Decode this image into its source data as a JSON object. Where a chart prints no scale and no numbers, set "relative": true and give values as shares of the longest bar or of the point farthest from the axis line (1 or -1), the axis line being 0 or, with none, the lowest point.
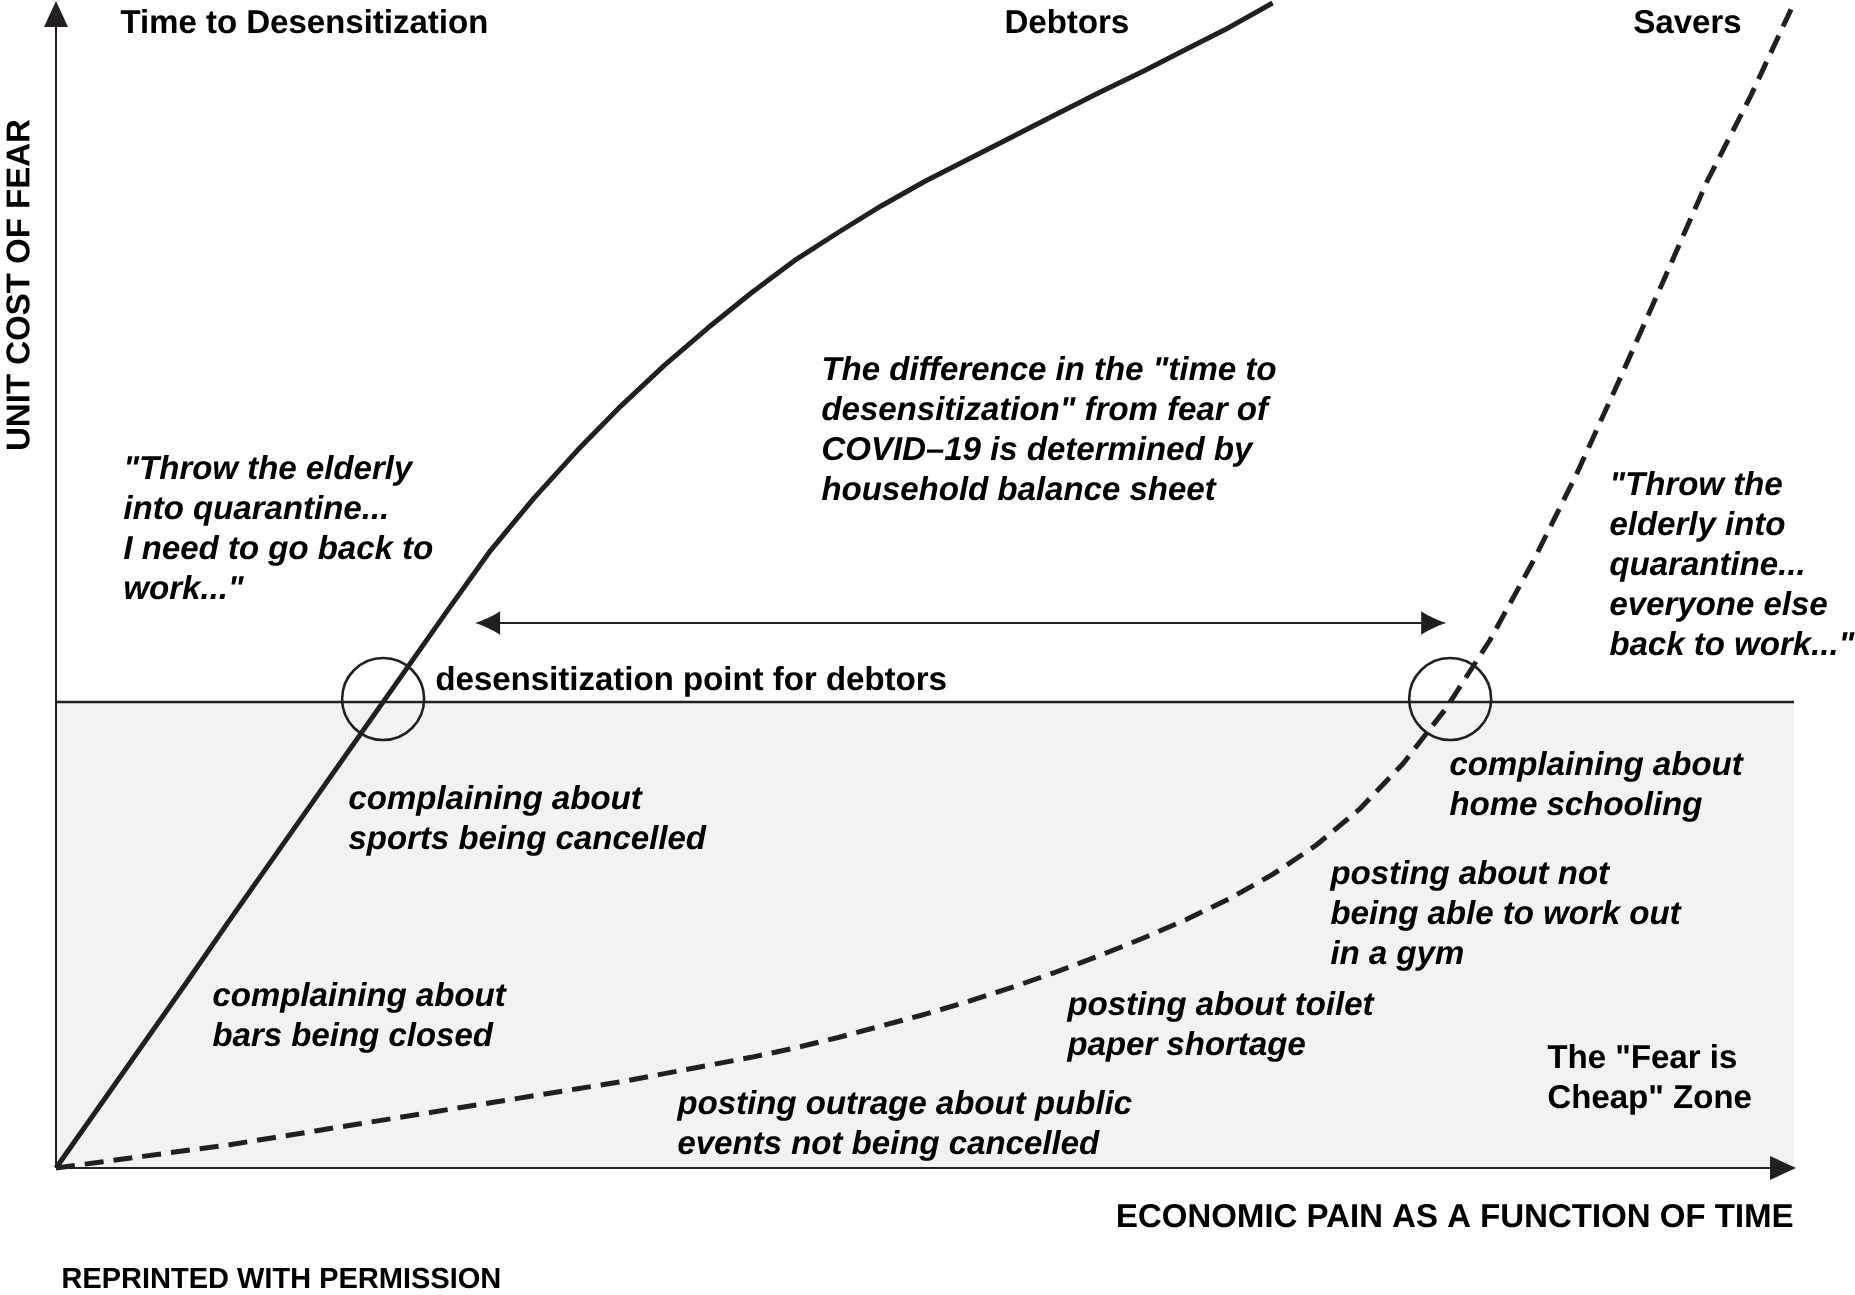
{
  "chart_data": {
    "type": "line",
    "title": "Time to Desensitization",
    "xlabel": "ECONOMIC PAIN AS A FUNCTION OF TIME",
    "ylabel": "UNIT COST OF FEAR",
    "relative": true,
    "categories": [
      null,
      null,
      null,
      null,
      null,
      null,
      null,
      null,
      null,
      null,
      null,
      null,
      null,
      null,
      null,
      null,
      null,
      null,
      null,
      null,
      null,
      null,
      null,
      null,
      null,
      null,
      null,
      null,
      null,
      null,
      null,
      null,
      null,
      null,
      null,
      null,
      null,
      null,
      null,
      null,
      null
    ],
    "series": [
      {
        "name": "Debtors",
        "color": "#231f20",
        "line_style": "solid",
        "values": [
          0,
          0.053,
          0.106,
          0.159,
          0.213,
          0.266,
          0.319,
          0.372,
          0.425,
          0.478,
          0.53,
          0.575,
          0.616,
          0.654,
          0.689,
          0.721,
          0.751,
          0.779,
          0.803,
          0.826,
          0.847,
          0.866,
          0.885,
          0.904,
          0.923,
          0.941,
          0.96,
          0.979,
          1,
          null,
          null,
          null,
          null,
          null,
          null,
          null,
          null,
          null,
          null,
          null,
          null
        ]
      },
      {
        "name": "Savers",
        "color": "#231f20",
        "line_style": "dashed",
        "values": [
          0,
          0.005,
          0.01,
          0.015,
          0.02,
          0.026,
          0.032,
          0.038,
          0.044,
          0.05,
          0.056,
          0.062,
          0.068,
          0.074,
          0.081,
          0.088,
          0.095,
          0.103,
          0.112,
          0.122,
          0.132,
          0.143,
          0.155,
          0.168,
          0.182,
          0.197,
          0.213,
          0.231,
          0.252,
          0.277,
          0.308,
          0.347,
          0.395,
          0.453,
          0.521,
          0.596,
          0.678,
          0.762,
          0.847,
          0.92,
          1
        ]
      }
    ],
    "ref_lines": [
      {
        "axis": "y",
        "value": 0.4,
        "label": "desensitization point for debtors",
        "color": "#231f20"
      }
    ],
    "bands": [
      {
        "axis": "y",
        "from": 0,
        "to": 0.4,
        "label": "The \"Fear is Cheap\" Zone",
        "color": "#f2f2f2"
      }
    ],
    "annotations": [
      "\"Throw the elderly into quarantine... I need to go back to work...\"",
      "The difference in the \"time to desensitization\" from fear of COVID–19 is determined by household balance sheet",
      "\"Throw the elderly into quarantine... everyone else back to work...\"",
      "complaining about sports being cancelled",
      "complaining about home schooling",
      "posting about not being able to work out in a gym",
      "complaining about bars being closed",
      "posting about toilet paper shortage",
      "posting outrage about public events not being cancelled",
      "REPRINTED WITH PERMISSION"
    ]
  }
}
